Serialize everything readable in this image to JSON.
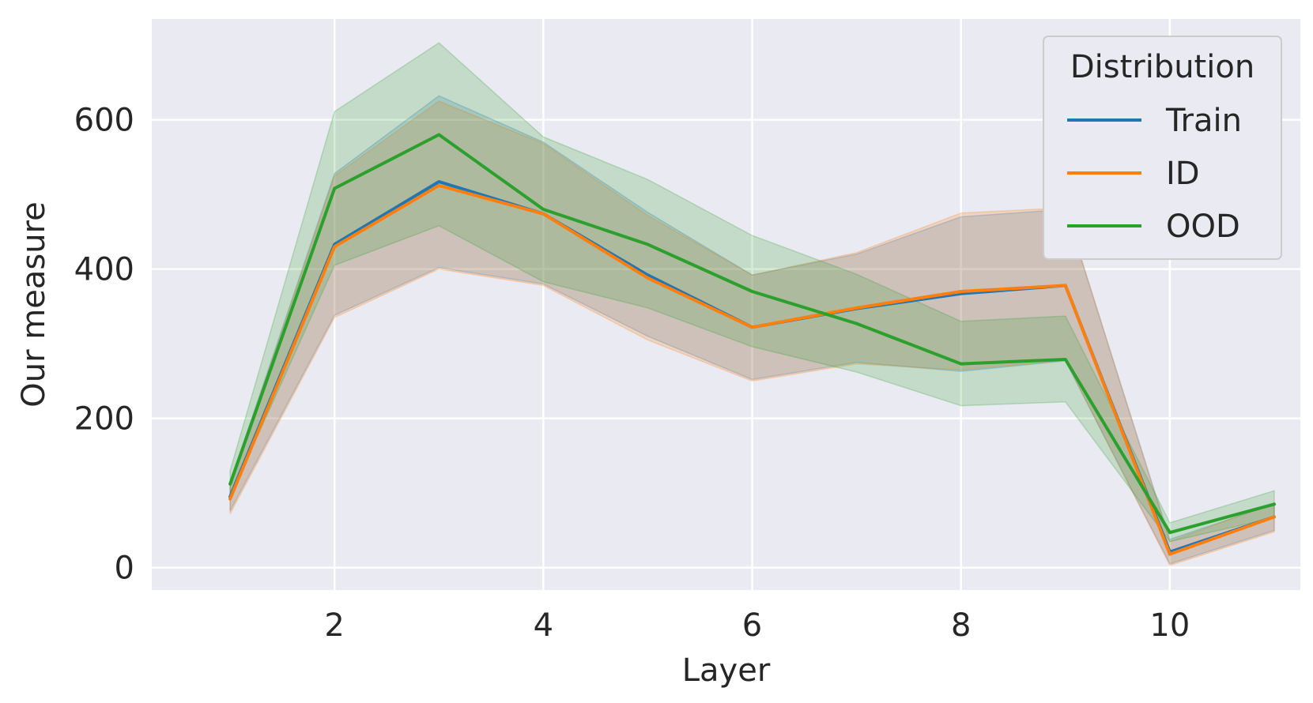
{
  "chart_data": {
    "type": "line",
    "xlabel": "Layer",
    "ylabel": "Our measure",
    "xlim": [
      0.25,
      11.25
    ],
    "ylim": [
      -30,
      735
    ],
    "xticks": [
      2,
      4,
      6,
      8,
      10
    ],
    "yticks": [
      0,
      200,
      400,
      600
    ],
    "grid": true,
    "legend": {
      "title": "Distribution",
      "placement": "top-right"
    },
    "x": [
      1,
      2,
      3,
      4,
      5,
      6,
      7,
      8,
      9,
      10,
      11
    ],
    "series": [
      {
        "name": "Train",
        "color": "#1f77b4",
        "values": [
          95,
          433,
          517,
          474,
          392,
          322,
          347,
          367,
          378,
          21,
          68
        ],
        "ci_low": [
          76,
          338,
          402,
          380,
          310,
          252,
          275,
          263,
          277,
          5,
          50
        ],
        "ci_high": [
          114,
          528,
          632,
          570,
          476,
          392,
          420,
          470,
          480,
          38,
          85
        ]
      },
      {
        "name": "ID",
        "color": "#ff7f0e",
        "values": [
          92,
          430,
          512,
          474,
          388,
          322,
          348,
          370,
          378,
          18,
          68
        ],
        "ci_low": [
          72,
          335,
          400,
          378,
          305,
          250,
          273,
          265,
          278,
          3,
          48
        ],
        "ci_high": [
          112,
          525,
          625,
          568,
          472,
          392,
          422,
          475,
          482,
          35,
          87
        ]
      },
      {
        "name": "OOD",
        "color": "#2ca02c",
        "values": [
          112,
          508,
          580,
          480,
          433,
          370,
          327,
          273,
          279,
          47,
          85
        ],
        "ci_low": [
          95,
          405,
          458,
          383,
          348,
          296,
          262,
          217,
          222,
          35,
          67
        ],
        "ci_high": [
          130,
          611,
          703,
          577,
          520,
          445,
          393,
          330,
          337,
          60,
          103
        ]
      }
    ]
  }
}
